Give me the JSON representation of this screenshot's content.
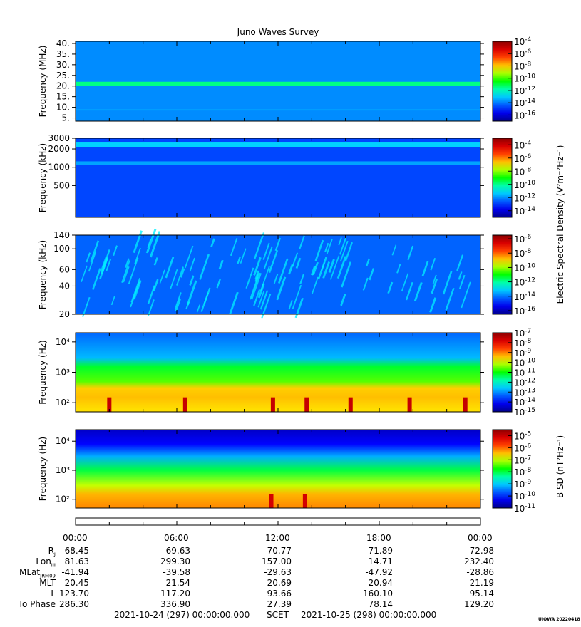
{
  "chart_data": [
    {
      "type": "heatmap",
      "title": "Juno Waves Survey",
      "ylabel": "Frequency (MHz)",
      "yscale": "linear",
      "ylim": [
        3.5,
        41
      ],
      "yticks": [
        5,
        10,
        15,
        20,
        25,
        30,
        35,
        40
      ],
      "yticklabels": [
        "5.",
        "10.",
        "15.",
        "20.",
        "25.",
        "30.",
        "35.",
        "40."
      ],
      "colorbar": {
        "exponents": [
          -4,
          -6,
          -8,
          -10,
          -12,
          -14,
          -16
        ],
        "range": [
          -17,
          -4
        ]
      },
      "features": [
        {
          "kind": "band",
          "range": [
            20.0,
            22.0
          ],
          "log_value": -11.5
        },
        {
          "kind": "band",
          "range": [
            8.6,
            9.0
          ],
          "log_value": -13.3
        },
        {
          "kind": "background",
          "log_value": -13.8
        }
      ]
    },
    {
      "type": "heatmap",
      "ylabel": "Frequency (kHz)",
      "yscale": "log",
      "ylim": [
        150,
        3000
      ],
      "yticks": [
        3000,
        2000,
        1000,
        500
      ],
      "yticklabels": [
        "3000",
        "2000",
        "1000",
        "500"
      ],
      "colorbar": {
        "exponents": [
          -4,
          -6,
          -8,
          -10,
          -12,
          -14
        ],
        "range": [
          -15,
          -3
        ],
        "label": "Electric Spectral Density (V²m⁻²Hz⁻¹)"
      },
      "features": [
        {
          "kind": "band",
          "range": [
            2150,
            2550
          ],
          "log_value": -11.3
        },
        {
          "kind": "band",
          "range": [
            1100,
            1250
          ],
          "log_value": -11.8
        },
        {
          "kind": "background",
          "log_value": -12.8
        }
      ]
    },
    {
      "type": "heatmap",
      "ylabel": "Frequency (kHz)",
      "yscale": "log",
      "ylim": [
        20,
        140
      ],
      "yticks": [
        20,
        40,
        60,
        100,
        140
      ],
      "yticklabels": [
        "20",
        "40",
        "60",
        "100",
        "140"
      ],
      "colorbar": {
        "exponents": [
          -6,
          -8,
          -10,
          -12,
          -14,
          -16
        ],
        "range": [
          -16.5,
          -5.5
        ]
      },
      "features": [
        {
          "kind": "background",
          "log_value": -14.2
        },
        {
          "kind": "dispersive_arcs",
          "log_value": -12.8
        }
      ]
    },
    {
      "type": "heatmap",
      "ylabel": "Frequency (Hz)",
      "yscale": "log",
      "ylim": [
        50,
        20000
      ],
      "yticks": [
        100,
        1000,
        10000
      ],
      "yticklabels": [
        "10²",
        "10³",
        "10⁴"
      ],
      "colorbar": {
        "exponents": [
          -7,
          -8,
          -9,
          -10,
          -11,
          -12,
          -13,
          -14,
          -15
        ],
        "range": [
          -15,
          -7
        ]
      },
      "features": [
        {
          "kind": "gradient",
          "stops": [
            [
              20000,
              -13.3
            ],
            [
              3000,
              -12.7
            ],
            [
              1500,
              -11.2
            ],
            [
              500,
              -10.6
            ],
            [
              300,
              -9.5
            ],
            [
              150,
              -9.4
            ],
            [
              60,
              -9.6
            ]
          ]
        },
        {
          "kind": "burst_times_h",
          "values": [
            2.0,
            6.5,
            11.7,
            13.7,
            16.3,
            19.8,
            23.1
          ]
        }
      ]
    },
    {
      "type": "heatmap",
      "ylabel": "Frequency (Hz)",
      "yscale": "log",
      "ylim": [
        50,
        25000
      ],
      "yticks": [
        100,
        1000,
        10000
      ],
      "yticklabels": [
        "10²",
        "10³",
        "10⁴"
      ],
      "colorbar": {
        "exponents": [
          -5,
          -6,
          -7,
          -8,
          -9,
          -10,
          -11
        ],
        "range": [
          -11,
          -4.5
        ],
        "label": "B SD (nT²Hz⁻¹)"
      },
      "features": [
        {
          "kind": "gradient",
          "stops": [
            [
              25000,
              -10.6
            ],
            [
              8000,
              -10.2
            ],
            [
              3000,
              -9.2
            ],
            [
              1000,
              -8.0
            ],
            [
              300,
              -7.0
            ],
            [
              150,
              -6.4
            ],
            [
              60,
              -6.2
            ]
          ]
        },
        {
          "kind": "burst_times_h",
          "values": [
            11.6,
            13.6
          ]
        }
      ]
    }
  ],
  "time_axis": {
    "ticks": [
      "00:00",
      "06:00",
      "12:00",
      "18:00",
      "00:00"
    ],
    "hours": [
      0,
      6,
      12,
      18,
      24
    ]
  },
  "ephemeris": [
    {
      "name": "Rj",
      "values": [
        "68.45",
        "69.63",
        "70.77",
        "71.89",
        "72.98"
      ]
    },
    {
      "name": "LonIII",
      "values": [
        "81.63",
        "299.30",
        "157.00",
        "14.71",
        "232.40"
      ]
    },
    {
      "name": "MLatJRM09",
      "values": [
        "-41.94",
        "-39.58",
        "-29.63",
        "-47.92",
        "-28.86"
      ]
    },
    {
      "name": "MLT",
      "values": [
        "20.45",
        "21.54",
        "20.69",
        "20.94",
        "21.19"
      ]
    },
    {
      "name": "L",
      "values": [
        "123.70",
        "117.20",
        "93.66",
        "160.10",
        "95.14"
      ]
    },
    {
      "name": "Io Phase",
      "values": [
        "286.30",
        "336.90",
        "27.39",
        "78.14",
        "129.20"
      ]
    }
  ],
  "footer": {
    "start": "2021-10-24 (297) 00:00:00.000",
    "mid": "SCET",
    "end": "2021-10-25 (298) 00:00:00.000",
    "credit": "UIOWA 20220418"
  }
}
